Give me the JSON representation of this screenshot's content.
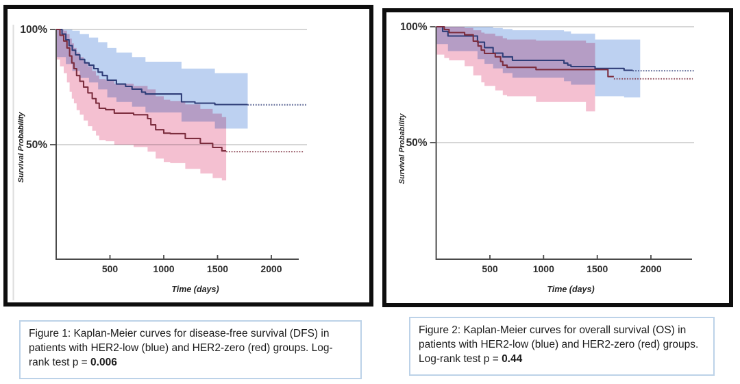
{
  "page": {
    "background": "#ffffff",
    "frame_color": "#0e0e0e",
    "caption_border_color": "#bcd2e8",
    "grid_color": "#c9c9c9",
    "axis_color": "#4a4a4a"
  },
  "figures": [
    {
      "caption": {
        "text": "Figure 1: Kaplan-Meier curves for disease-free survival (DFS) in patients with HER2-low (blue) and HER2-zero (red) groups. Log-rank test p = ",
        "p_value": "0.006"
      },
      "chart_data": {
        "type": "line",
        "subtype": "kaplan-meier-step",
        "title": "Disease-free survival (DFS)",
        "xlabel": "Time (days)",
        "ylabel": "Survival Probability",
        "xticks": [
          500,
          1000,
          1500,
          2000
        ],
        "yticks": [
          {
            "label": "100%",
            "value": 100
          },
          {
            "label": "50%",
            "value": 50
          }
        ],
        "xlim": [
          0,
          2255
        ],
        "ylim": [
          0,
          100
        ],
        "grid": "horizontal-only",
        "log_rank_p": "0.006",
        "series": [
          {
            "name": "HER2-low",
            "color_label": "blue",
            "line_color": "#2f3d78",
            "band_color": "#bdd1f1",
            "steps": [
              [
                0,
                100
              ],
              [
                55,
                98
              ],
              [
                90,
                95.5
              ],
              [
                120,
                93
              ],
              [
                150,
                91
              ],
              [
                180,
                89
              ],
              [
                220,
                87
              ],
              [
                265,
                85.5
              ],
              [
                305,
                84.5
              ],
              [
                350,
                83
              ],
              [
                390,
                81.5
              ],
              [
                430,
                80
              ],
              [
                475,
                78
              ],
              [
                560,
                76.3
              ],
              [
                645,
                75.3
              ],
              [
                705,
                74.1
              ],
              [
                795,
                72.8
              ],
              [
                830,
                72
              ],
              [
                1165,
                68.6
              ],
              [
                1290,
                68
              ],
              [
                1475,
                67.4
              ]
            ],
            "solid_end_day": 1780,
            "censored_level": 67.3,
            "censored_end_day": 2330,
            "band": [
              [
                0,
                100,
                88
              ],
              [
                90,
                100,
                85
              ],
              [
                150,
                99.5,
                82
              ],
              [
                220,
                98,
                79
              ],
              [
                305,
                96.5,
                77
              ],
              [
                390,
                94.5,
                74
              ],
              [
                475,
                92,
                70.5
              ],
              [
                560,
                90,
                68.5
              ],
              [
                705,
                88,
                66.5
              ],
              [
                830,
                86,
                64
              ],
              [
                1165,
                83,
                60
              ],
              [
                1475,
                81,
                57
              ]
            ],
            "band_end_day": 1780
          },
          {
            "name": "HER2-zero",
            "color_label": "red",
            "line_color": "#7c2d3e",
            "band_color": "#f4c0d1",
            "steps": [
              [
                0,
                100
              ],
              [
                35,
                97.5
              ],
              [
                70,
                95
              ],
              [
                100,
                92
              ],
              [
                125,
                88.5
              ],
              [
                145,
                85.5
              ],
              [
                165,
                83
              ],
              [
                190,
                80
              ],
              [
                220,
                77.5
              ],
              [
                255,
                75
              ],
              [
                295,
                72.5
              ],
              [
                335,
                70
              ],
              [
                370,
                68
              ],
              [
                400,
                65.8
              ],
              [
                460,
                65.2
              ],
              [
                540,
                63.7
              ],
              [
                720,
                63
              ],
              [
                850,
                61.3
              ],
              [
                880,
                58.6
              ],
              [
                925,
                56.5
              ],
              [
                1000,
                55
              ],
              [
                1060,
                54.8
              ],
              [
                1200,
                52.7
              ],
              [
                1340,
                50.6
              ],
              [
                1455,
                48.8
              ],
              [
                1540,
                47.3
              ]
            ],
            "solid_end_day": 1580,
            "censored_level": 47,
            "censored_end_day": 2300,
            "band": [
              [
                0,
                100,
                87
              ],
              [
                35,
                100,
                84
              ],
              [
                70,
                99.5,
                81
              ],
              [
                100,
                98,
                77
              ],
              [
                125,
                96,
                73
              ],
              [
                145,
                94,
                70
              ],
              [
                165,
                92,
                68
              ],
              [
                190,
                90,
                65
              ],
              [
                220,
                88,
                63
              ],
              [
                255,
                86,
                60.5
              ],
              [
                295,
                84,
                58
              ],
              [
                335,
                82,
                56
              ],
              [
                370,
                80,
                54
              ],
              [
                400,
                78.5,
                52
              ],
              [
                460,
                78,
                51.5
              ],
              [
                540,
                76.5,
                50
              ],
              [
                720,
                75.5,
                49
              ],
              [
                850,
                74,
                47
              ],
              [
                925,
                71,
                44
              ],
              [
                1000,
                69.5,
                42.5
              ],
              [
                1060,
                69,
                42
              ],
              [
                1200,
                67.5,
                39.5
              ],
              [
                1340,
                65.5,
                37.5
              ],
              [
                1455,
                63.5,
                35.5
              ],
              [
                1540,
                62,
                34.5
              ]
            ],
            "band_end_day": 1580
          }
        ]
      }
    },
    {
      "caption": {
        "text": "Figure 2: Kaplan-Meier curves for overall survival (OS) in patients with HER2-low (blue) and HER2-zero (red) groups. Log-rank test p = ",
        "p_value": "0.44"
      },
      "chart_data": {
        "type": "line",
        "subtype": "kaplan-meier-step",
        "title": "Overall survival (OS)",
        "xlabel": "Time (days)",
        "ylabel": "Survival Probability",
        "xticks": [
          500,
          1000,
          1500,
          2000
        ],
        "yticks": [
          {
            "label": "100%",
            "value": 100
          },
          {
            "label": "50%",
            "value": 50
          }
        ],
        "xlim": [
          0,
          2385
        ],
        "ylim": [
          0,
          100
        ],
        "grid": "horizontal-only",
        "log_rank_p": "0.44",
        "series": [
          {
            "name": "HER2-low",
            "color_label": "blue",
            "line_color": "#2f3d78",
            "band_color": "#bdd1f1",
            "steps": [
              [
                0,
                100
              ],
              [
                60,
                98
              ],
              [
                110,
                96
              ],
              [
                385,
                93.3
              ],
              [
                450,
                91
              ],
              [
                530,
                88.6
              ],
              [
                620,
                87
              ],
              [
                710,
                85.5
              ],
              [
                1190,
                84.3
              ],
              [
                1225,
                83.5
              ],
              [
                1255,
                82.8
              ],
              [
                1480,
                82
              ],
              [
                1750,
                81.2
              ]
            ],
            "solid_end_day": 1830,
            "censored_level": 81,
            "censored_end_day": 2400,
            "band": [
              [
                0,
                100,
                92.5
              ],
              [
                110,
                100,
                89.5
              ],
              [
                385,
                100,
                86
              ],
              [
                450,
                100,
                84
              ],
              [
                530,
                99.5,
                82
              ],
              [
                620,
                99,
                80
              ],
              [
                710,
                98.5,
                78
              ],
              [
                1190,
                98,
                76.5
              ],
              [
                1255,
                97,
                75
              ],
              [
                1480,
                94.5,
                70
              ],
              [
                1750,
                94.5,
                69.5
              ]
            ],
            "band_end_day": 1900
          },
          {
            "name": "HER2-zero",
            "color_label": "red",
            "line_color": "#7c2d3e",
            "band_color": "#f4c0d1",
            "steps": [
              [
                0,
                100
              ],
              [
                75,
                98.8
              ],
              [
                120,
                97.5
              ],
              [
                265,
                96.5
              ],
              [
                345,
                93.8
              ],
              [
                390,
                91.7
              ],
              [
                420,
                89.9
              ],
              [
                450,
                88.5
              ],
              [
                550,
                87
              ],
              [
                600,
                85
              ],
              [
                620,
                83.4
              ],
              [
                660,
                82.5
              ],
              [
                930,
                81.5
              ],
              [
                1600,
                78.5
              ]
            ],
            "solid_end_day": 1655,
            "censored_level": 77.5,
            "censored_end_day": 2390,
            "band": [
              [
                0,
                100,
                88
              ],
              [
                75,
                100,
                86.5
              ],
              [
                120,
                100,
                85.5
              ],
              [
                265,
                99.5,
                83
              ],
              [
                345,
                98.5,
                79
              ],
              [
                420,
                97.5,
                76
              ],
              [
                450,
                97,
                74.5
              ],
              [
                550,
                96,
                72.5
              ],
              [
                620,
                95,
                70.5
              ],
              [
                660,
                94.5,
                70
              ],
              [
                930,
                94,
                67.5
              ],
              [
                1395,
                93,
                63.5
              ]
            ],
            "band_end_day": 1480
          }
        ]
      }
    }
  ]
}
